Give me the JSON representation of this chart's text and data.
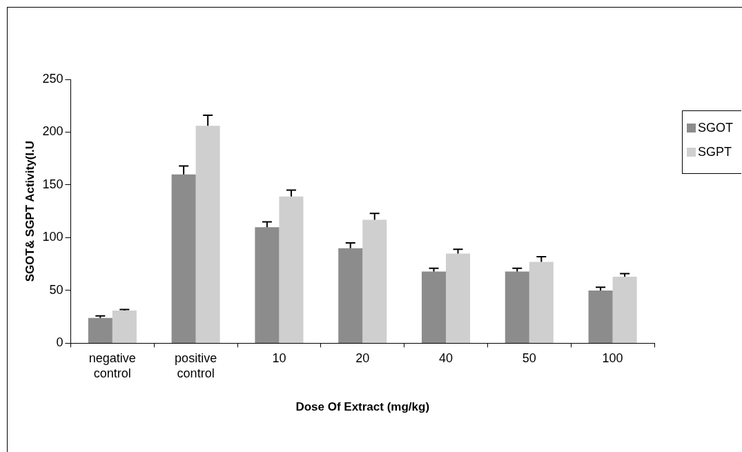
{
  "chart_data": {
    "type": "bar",
    "xlabel": "Dose Of Extract (mg/kg)",
    "ylabel": "SGOT& SGPT Activity(I.U",
    "categories": [
      "negative control",
      "positive control",
      "10",
      "20",
      "40",
      "50",
      "100"
    ],
    "series": [
      {
        "name": "SGOT",
        "color": "#8c8c8c",
        "values": [
          24,
          160,
          110,
          90,
          68,
          68,
          50
        ],
        "errors": [
          [
            24,
            26
          ],
          [
            160,
            168
          ],
          [
            110,
            115
          ],
          [
            90,
            95
          ],
          [
            68,
            71
          ],
          [
            68,
            71
          ],
          [
            50,
            53
          ]
        ]
      },
      {
        "name": "SGPT",
        "color": "#cfcfcf",
        "values": [
          31,
          206,
          139,
          117,
          85,
          77,
          63
        ],
        "errors": [
          [
            31,
            32
          ],
          [
            206,
            216
          ],
          [
            139,
            145
          ],
          [
            117,
            123
          ],
          [
            85,
            89
          ],
          [
            77,
            82
          ],
          [
            63,
            66
          ]
        ]
      }
    ],
    "ylim": [
      0,
      250
    ],
    "yticks": [
      0,
      50,
      100,
      150,
      200,
      250
    ],
    "grid": false,
    "legend": "right"
  }
}
